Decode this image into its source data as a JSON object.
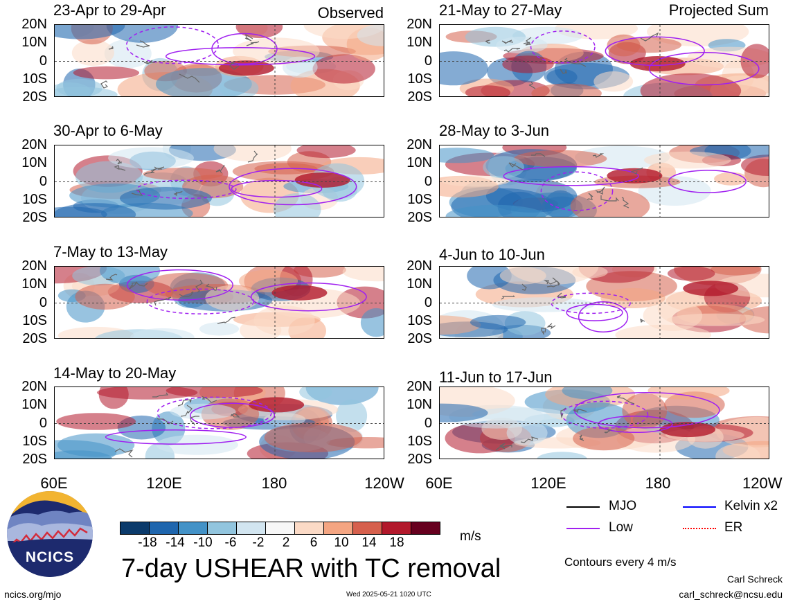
{
  "panels_left_header": "Observed",
  "panels_right_header": "Projected Sum",
  "panels": {
    "left": [
      {
        "title": "23-Apr to 29-Apr"
      },
      {
        "title": "30-Apr to 6-May"
      },
      {
        "title": "7-May to 13-May"
      },
      {
        "title": "14-May to 20-May"
      }
    ],
    "right": [
      {
        "title": "21-May to 27-May"
      },
      {
        "title": "28-May to 3-Jun"
      },
      {
        "title": "4-Jun to 10-Jun"
      },
      {
        "title": "11-Jun to 17-Jun"
      }
    ]
  },
  "lat_labels": [
    "20N",
    "10N",
    "0",
    "10S",
    "20S"
  ],
  "lon_labels": [
    "60E",
    "120E",
    "180",
    "120W"
  ],
  "colorbar": {
    "ticks": [
      "-18",
      "-14",
      "-10",
      "-6",
      "-2",
      "2",
      "6",
      "10",
      "14",
      "18"
    ],
    "colors": [
      "#0b3a6b",
      "#1f66ae",
      "#4392c7",
      "#92c5de",
      "#d2e5f0",
      "#f7f7f7",
      "#fbdac6",
      "#f4a582",
      "#d6604d",
      "#b2182b",
      "#67001f"
    ],
    "unit": "m/s"
  },
  "legend": {
    "items": [
      {
        "label": "MJO",
        "color": "#000000"
      },
      {
        "label": "Kelvin x2",
        "color": "#0000ff"
      },
      {
        "label": "Low",
        "color": "#a020f0"
      },
      {
        "label": "ER",
        "color": "#ff0000"
      }
    ],
    "contour_note": "Contours every 4 m/s"
  },
  "main_title": "7-day USHEAR with TC removal",
  "logo_text": "NCICS",
  "footer": {
    "left": "ncics.org/mjo",
    "center": "Wed 2025-05-21 1020 UTC",
    "right_name": "Carl Schreck",
    "right_email": "carl_schreck@ncsu.edu"
  }
}
